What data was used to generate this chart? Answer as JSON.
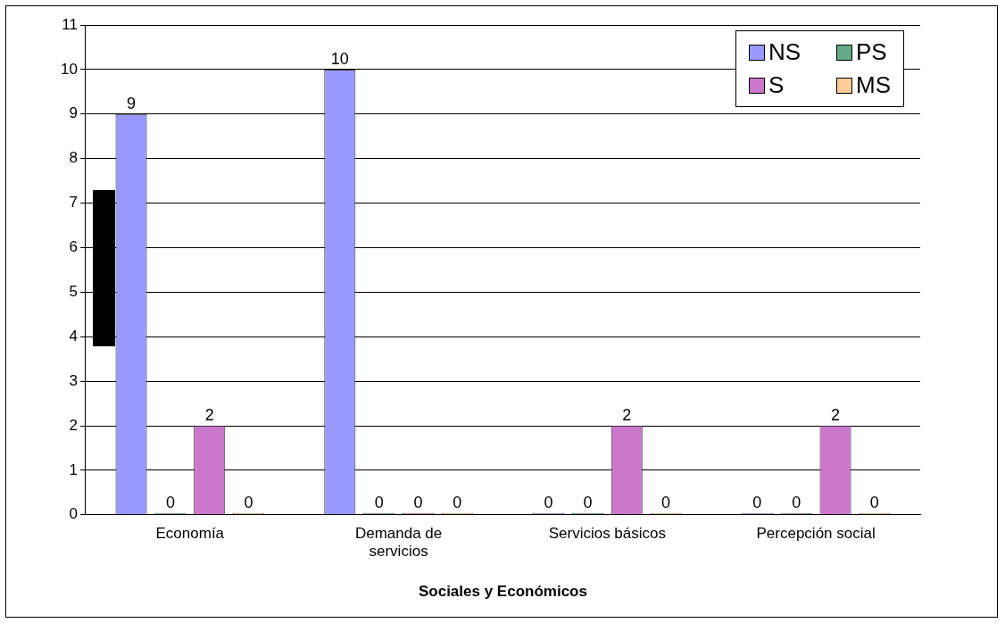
{
  "chart_data": {
    "type": "bar",
    "xlabel": "Sociales y Económicos",
    "categories": [
      "Economía",
      "Demanda de servicios",
      "Servicios básicos",
      "Percepción social"
    ],
    "series": [
      {
        "name": "NS",
        "color": "#9999ff",
        "values": [
          9,
          10,
          0,
          0
        ]
      },
      {
        "name": "PS",
        "color": "#66aa88",
        "values": [
          0,
          0,
          0,
          0
        ]
      },
      {
        "name": "S",
        "color": "#cc77cc",
        "values": [
          2,
          0,
          2,
          2
        ]
      },
      {
        "name": "MS",
        "color": "#ffcc99",
        "values": [
          0,
          0,
          0,
          0
        ]
      }
    ],
    "ylim": [
      0,
      11
    ],
    "yticks": [
      0,
      1,
      2,
      3,
      4,
      5,
      6,
      7,
      8,
      9,
      10,
      11
    ],
    "grid": "y",
    "legend": "top right",
    "data_labels": true
  }
}
